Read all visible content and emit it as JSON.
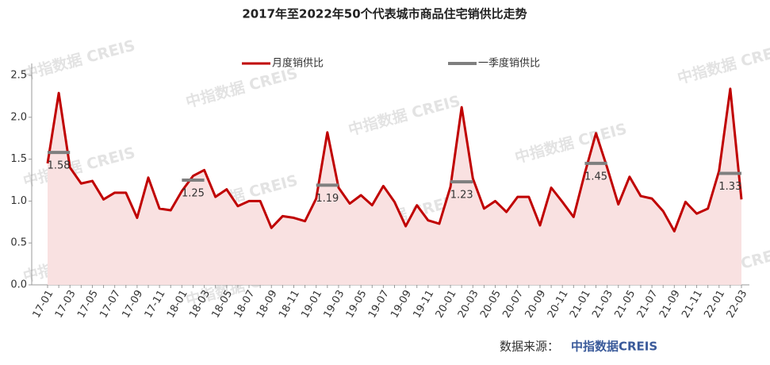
{
  "chart_data": {
    "type": "line",
    "title": "2017年至2022年50个代表城市商品住宅销供比走势",
    "watermark": "中指数据 CREIS",
    "source_label": "数据来源：",
    "source_name": "中指数据CREIS",
    "categories": [
      "17-01",
      null,
      "17-03",
      null,
      "17-05",
      null,
      "17-07",
      null,
      "17-09",
      null,
      "17-11",
      null,
      "18-01",
      null,
      "18-03",
      null,
      "18-05",
      null,
      "18-07",
      null,
      "18-09",
      null,
      "18-11",
      null,
      "19-01",
      null,
      "19-03",
      null,
      "19-05",
      null,
      "19-07",
      null,
      "19-09",
      null,
      "19-11",
      null,
      "20-01",
      null,
      "20-03",
      null,
      "20-05",
      null,
      "20-07",
      null,
      "20-09",
      null,
      "20-11",
      null,
      "21-01",
      null,
      "21-03",
      null,
      "21-05",
      null,
      "21-07",
      null,
      "21-09",
      null,
      "21-11",
      null,
      "22-01",
      null,
      "22-03"
    ],
    "series": [
      {
        "name": "月度销供比",
        "color": "#c00000",
        "area_color": "#f9e1e1",
        "values": [
          1.45,
          2.29,
          1.4,
          1.21,
          1.24,
          1.02,
          1.1,
          1.1,
          0.8,
          1.28,
          0.91,
          0.89,
          1.12,
          1.3,
          1.37,
          1.05,
          1.14,
          0.94,
          1.0,
          1.0,
          0.68,
          0.82,
          0.8,
          0.76,
          1.03,
          1.82,
          1.16,
          0.97,
          1.07,
          0.95,
          1.18,
          0.99,
          0.7,
          0.95,
          0.77,
          0.73,
          1.17,
          2.12,
          1.27,
          0.91,
          1.0,
          0.87,
          1.05,
          1.05,
          0.71,
          1.16,
          0.99,
          0.81,
          1.33,
          1.81,
          1.4,
          0.96,
          1.29,
          1.06,
          1.03,
          0.88,
          0.64,
          0.99,
          0.85,
          0.91,
          1.36,
          2.34,
          1.02
        ]
      },
      {
        "name": "一季度销供比",
        "color": "#7f7f7f",
        "values": [
          null,
          1.58,
          null,
          null,
          null,
          null,
          null,
          null,
          null,
          null,
          null,
          null,
          null,
          1.25,
          null,
          null,
          null,
          null,
          null,
          null,
          null,
          null,
          null,
          null,
          null,
          1.19,
          null,
          null,
          null,
          null,
          null,
          null,
          null,
          null,
          null,
          null,
          null,
          1.23,
          null,
          null,
          null,
          null,
          null,
          null,
          null,
          null,
          null,
          null,
          null,
          1.45,
          null,
          null,
          null,
          null,
          null,
          null,
          null,
          null,
          null,
          null,
          null,
          1.33,
          null
        ]
      }
    ],
    "ylim": [
      0,
      2.5
    ],
    "yticks": [
      {
        "value": 0,
        "label": "0.0"
      },
      {
        "value": 0.5,
        "label": "0.5"
      },
      {
        "value": 1,
        "label": "1.0"
      },
      {
        "value": 1.5,
        "label": "1.5"
      },
      {
        "value": 2,
        "label": "2.0"
      },
      {
        "value": 2.5,
        "label": "2.5"
      }
    ],
    "grid": false
  }
}
